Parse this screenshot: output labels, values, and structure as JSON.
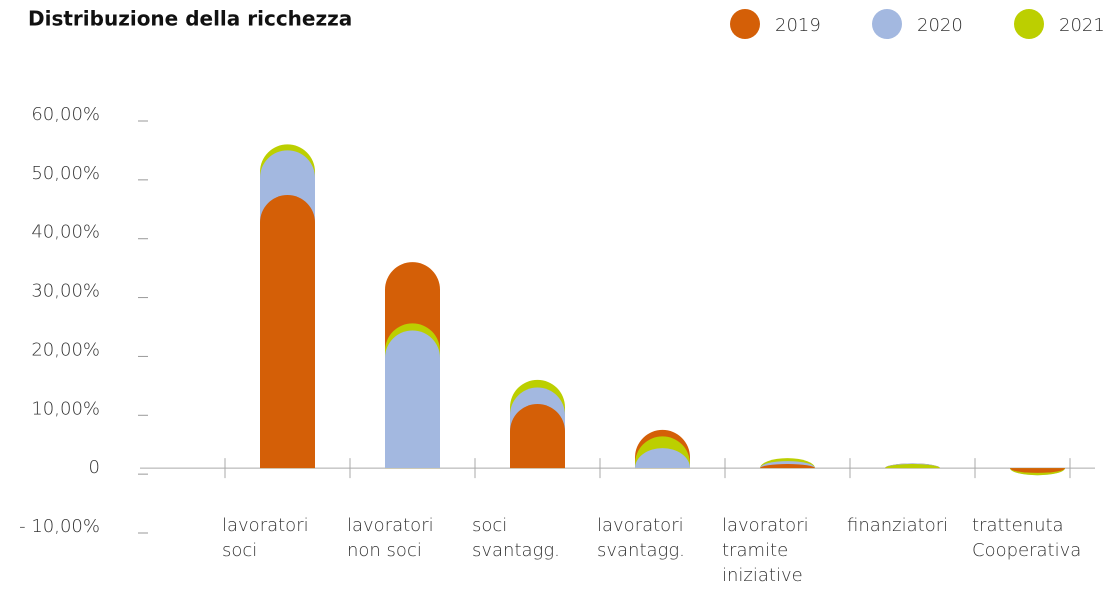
{
  "chart_data": {
    "type": "bar",
    "title": "Distribuzione della ricchezza",
    "categories": [
      [
        "lavoratori",
        "soci"
      ],
      [
        "lavoratori",
        "non soci"
      ],
      [
        "soci",
        "svantagg."
      ],
      [
        "lavoratori",
        "svantagg."
      ],
      [
        "lavoratori",
        "tramite",
        "iniziative"
      ],
      [
        "finanziatori"
      ],
      [
        "trattenuta",
        "Cooperativa"
      ]
    ],
    "series": [
      {
        "name": "2019",
        "color": "#d45f07",
        "values": [
          46.4,
          35,
          10.9,
          6.5,
          0.7,
          0.8,
          -0.8
        ]
      },
      {
        "name": "2020",
        "color": "#a3b8e0",
        "values": [
          54,
          23.4,
          13.7,
          3.4,
          1.2,
          0.8,
          -1.2
        ]
      },
      {
        "name": "2021",
        "color": "#bccf00",
        "values": [
          55,
          24.6,
          15,
          5.4,
          1.7,
          0.7,
          -1.2
        ]
      }
    ],
    "ylim": [
      -10,
      60
    ],
    "yticks": [
      {
        "value": -10,
        "label": "- 10,00%"
      },
      0,
      {
        "value": 10,
        "label": "10,00%"
      },
      {
        "value": 20,
        "label": "20,00%"
      },
      {
        "value": 30,
        "label": "30,00%"
      },
      {
        "value": 40,
        "label": "40,00%"
      },
      {
        "value": 50,
        "label": "50,00%"
      },
      {
        "value": 60,
        "label": "60,00%"
      }
    ],
    "legend": "top-right"
  }
}
